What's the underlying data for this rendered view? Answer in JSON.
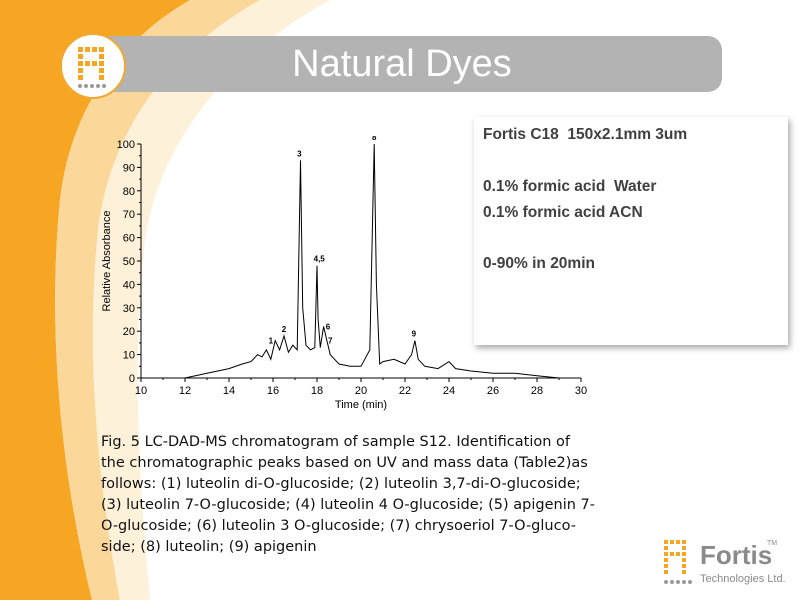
{
  "slide": {
    "title": "Natural Dyes",
    "accent_color": "#f0a830",
    "title_bar_color": "#b3b3b3"
  },
  "info_box": {
    "lines": [
      "Fortis C18  150x2.1mm 3um",
      "0.1% formic acid  Water",
      "0.1% formic acid ACN",
      "0-90% in 20min"
    ]
  },
  "chart_data": {
    "type": "line",
    "title": "",
    "xlabel": "Time (min)",
    "ylabel": "Relative Absorbance",
    "xlim": [
      10,
      30
    ],
    "ylim": [
      0,
      100
    ],
    "xticks": [
      10,
      12,
      14,
      16,
      18,
      20,
      22,
      24,
      26,
      28,
      30
    ],
    "yticks": [
      0,
      10,
      20,
      30,
      40,
      50,
      60,
      70,
      80,
      90,
      100
    ],
    "grid": false,
    "series": [
      {
        "x": [
          10,
          12,
          13,
          14,
          14.6,
          15.0,
          15.3,
          15.5,
          15.7,
          15.9,
          16.1,
          16.3,
          16.5,
          16.7,
          16.9,
          17.1,
          17.25,
          17.35,
          17.5,
          17.7,
          17.9,
          18.0,
          18.05,
          18.15,
          18.3,
          18.45,
          18.6,
          18.8,
          19.0,
          19.5,
          20.0,
          20.4,
          20.6,
          20.7,
          20.85,
          21.0,
          21.5,
          22.0,
          22.3,
          22.45,
          22.6,
          22.9,
          23.5,
          24.0,
          24.3,
          25.0,
          26.0,
          27.0,
          28.0,
          29.0
        ],
        "y": [
          0,
          0,
          2,
          4,
          6,
          7,
          10,
          9,
          12,
          8,
          16,
          12,
          18,
          11,
          14,
          12,
          93,
          30,
          14,
          12,
          13,
          48,
          25,
          13,
          22,
          16,
          10,
          8,
          6,
          5,
          5,
          12,
          100,
          40,
          6,
          7,
          8,
          6,
          10,
          16,
          8,
          5,
          4,
          7,
          4,
          3,
          2,
          2,
          1,
          0
        ]
      }
    ],
    "peak_labels": [
      {
        "label": "1",
        "x": 15.9,
        "y": 13
      },
      {
        "label": "2",
        "x": 16.5,
        "y": 18
      },
      {
        "label": "3",
        "x": 17.2,
        "y": 93
      },
      {
        "label": "4,5",
        "x": 18.1,
        "y": 48
      },
      {
        "label": "6",
        "x": 18.5,
        "y": 19
      },
      {
        "label": "7",
        "x": 18.6,
        "y": 13
      },
      {
        "label": "8",
        "x": 20.6,
        "y": 100
      },
      {
        "label": "9",
        "x": 22.4,
        "y": 16
      }
    ]
  },
  "caption": {
    "lines": [
      "Fig. 5   LC-DAD-MS chromatogram of sample S12. Identification of",
      "the chromatographic peaks based on UV and mass data (Table2)as",
      "follows: (1) luteolin di-O-glucoside; (2) luteolin 3,7-di-O-glucoside;",
      "(3) luteolin 7-O-glucoside; (4) luteolin 4 O-glucoside; (5) apigenin 7-",
      "O-glucoside; (6) luteolin 3 O-glucoside; (7) chrysoeriol 7-O-gluco-",
      "side; (8) luteolin; (9) apigenin"
    ]
  },
  "footer": {
    "brand": "Fortis",
    "tm": "TM",
    "subtitle": "Technologies Ltd."
  }
}
